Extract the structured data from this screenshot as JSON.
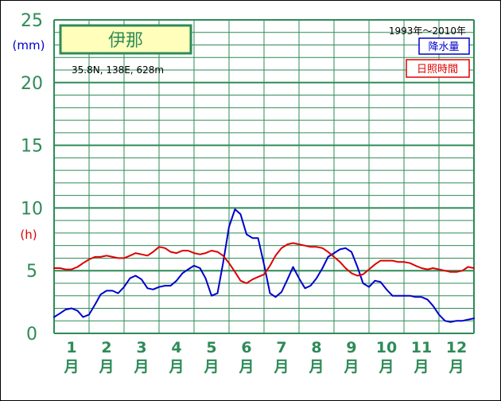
{
  "chart_data": {
    "type": "line",
    "title": "伊那",
    "location": "35.8N,  138E,  628m",
    "period": "1993年〜2010年",
    "ylim": [
      0,
      25
    ],
    "y_ticks": [
      "0",
      "5",
      "10",
      "15",
      "20",
      "25"
    ],
    "y_units": {
      "rain": "(mm)",
      "sun": "(h)"
    },
    "categories": [
      "1月",
      "2月",
      "3月",
      "4月",
      "5月",
      "6月",
      "7月",
      "8月",
      "9月",
      "10月",
      "11月",
      "12月"
    ],
    "x_labels": [
      {
        "num": "1",
        "unit": "月"
      },
      {
        "num": "2",
        "unit": "月"
      },
      {
        "num": "3",
        "unit": "月"
      },
      {
        "num": "4",
        "unit": "月"
      },
      {
        "num": "5",
        "unit": "月"
      },
      {
        "num": "6",
        "unit": "月"
      },
      {
        "num": "7",
        "unit": "月"
      },
      {
        "num": "8",
        "unit": "月"
      },
      {
        "num": "9",
        "unit": "月"
      },
      {
        "num": "10",
        "unit": "月"
      },
      {
        "num": "11",
        "unit": "月"
      },
      {
        "num": "12",
        "unit": "月"
      }
    ],
    "x_range": [
      0.5,
      12.5
    ],
    "grid": true,
    "legend_position": "top-right",
    "series": [
      {
        "name": "降水量",
        "color": "#0000cc",
        "x": [
          0.5,
          0.67,
          0.83,
          1.0,
          1.17,
          1.33,
          1.5,
          1.67,
          1.83,
          2.0,
          2.17,
          2.33,
          2.5,
          2.67,
          2.83,
          3.0,
          3.17,
          3.33,
          3.5,
          3.67,
          3.83,
          4.0,
          4.17,
          4.33,
          4.5,
          4.67,
          4.83,
          5.0,
          5.17,
          5.33,
          5.5,
          5.67,
          5.83,
          6.0,
          6.17,
          6.33,
          6.5,
          6.67,
          6.83,
          7.0,
          7.17,
          7.33,
          7.5,
          7.67,
          7.83,
          8.0,
          8.17,
          8.33,
          8.5,
          8.67,
          8.83,
          9.0,
          9.17,
          9.33,
          9.5,
          9.67,
          9.83,
          10.0,
          10.17,
          10.33,
          10.5,
          10.67,
          10.83,
          11.0,
          11.17,
          11.33,
          11.5,
          11.67,
          11.83,
          12.0,
          12.17,
          12.33,
          12.5
        ],
        "values": [
          1.3,
          1.6,
          1.9,
          2.0,
          1.8,
          1.3,
          1.5,
          2.3,
          3.1,
          3.4,
          3.4,
          3.2,
          3.7,
          4.4,
          4.6,
          4.3,
          3.6,
          3.5,
          3.7,
          3.8,
          3.8,
          4.2,
          4.8,
          5.1,
          5.4,
          5.2,
          4.4,
          3.0,
          3.2,
          5.6,
          8.5,
          9.9,
          9.5,
          7.9,
          7.6,
          7.6,
          5.5,
          3.2,
          2.9,
          3.3,
          4.3,
          5.3,
          4.4,
          3.6,
          3.8,
          4.4,
          5.2,
          6.1,
          6.4,
          6.7,
          6.8,
          6.5,
          5.3,
          4.0,
          3.7,
          4.2,
          4.1,
          3.5,
          3.0,
          3.0,
          3.0,
          3.0,
          2.9,
          2.9,
          2.7,
          2.2,
          1.5,
          1.0,
          0.9,
          1.0,
          1.0,
          1.1,
          1.2
        ]
      },
      {
        "name": "日照時間",
        "color": "#dd0000",
        "x": [
          0.5,
          0.67,
          0.83,
          1.0,
          1.17,
          1.33,
          1.5,
          1.67,
          1.83,
          2.0,
          2.17,
          2.33,
          2.5,
          2.67,
          2.83,
          3.0,
          3.17,
          3.33,
          3.5,
          3.67,
          3.83,
          4.0,
          4.17,
          4.33,
          4.5,
          4.67,
          4.83,
          5.0,
          5.17,
          5.33,
          5.5,
          5.67,
          5.83,
          6.0,
          6.17,
          6.33,
          6.5,
          6.67,
          6.83,
          7.0,
          7.17,
          7.33,
          7.5,
          7.67,
          7.83,
          8.0,
          8.17,
          8.33,
          8.5,
          8.67,
          8.83,
          9.0,
          9.17,
          9.33,
          9.5,
          9.67,
          9.83,
          10.0,
          10.17,
          10.33,
          10.5,
          10.67,
          10.83,
          11.0,
          11.17,
          11.33,
          11.5,
          11.67,
          11.83,
          12.0,
          12.17,
          12.33,
          12.5
        ],
        "values": [
          5.2,
          5.2,
          5.1,
          5.1,
          5.3,
          5.6,
          5.9,
          6.1,
          6.1,
          6.2,
          6.1,
          6.0,
          6.0,
          6.2,
          6.4,
          6.3,
          6.2,
          6.5,
          6.9,
          6.8,
          6.5,
          6.4,
          6.6,
          6.6,
          6.4,
          6.3,
          6.4,
          6.6,
          6.5,
          6.2,
          5.6,
          4.9,
          4.2,
          4.0,
          4.3,
          4.5,
          4.7,
          5.4,
          6.2,
          6.8,
          7.1,
          7.2,
          7.1,
          7.0,
          6.9,
          6.9,
          6.8,
          6.5,
          6.1,
          5.7,
          5.2,
          4.8,
          4.6,
          4.7,
          5.1,
          5.5,
          5.8,
          5.8,
          5.8,
          5.7,
          5.7,
          5.6,
          5.4,
          5.2,
          5.1,
          5.2,
          5.1,
          5.0,
          4.9,
          4.9,
          5.0,
          5.3,
          5.2
        ]
      }
    ]
  }
}
